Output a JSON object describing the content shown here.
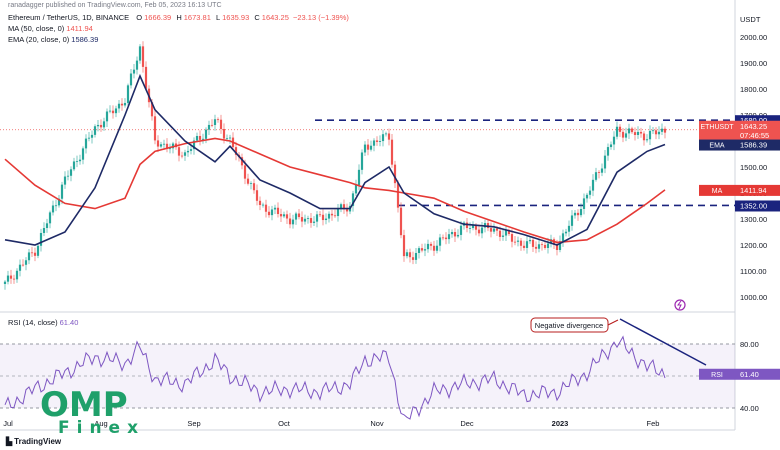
{
  "header": {
    "publisher": "ranadagger published on TradingView.com, Feb 05, 2023 16:13 UTC",
    "symbol_line": "Ethereum / TetherUS, 1D, BINANCE",
    "ohlc": {
      "o": "1666.39",
      "h": "1673.81",
      "l": "1635.93",
      "c": "1643.25",
      "chg": "−23.13 (−1.39%)"
    },
    "ma_label": "MA (50, close, 0)",
    "ma_value": "1411.94",
    "ema_label": "EMA (20, close, 0)",
    "ema_value": "1586.39",
    "rsi_label": "RSI (14, close)",
    "rsi_value": "61.40",
    "currency": "USDT"
  },
  "price_axis": [
    "2000.00",
    "1900.00",
    "1800.00",
    "1700.00",
    "1600.00",
    "1500.00",
    "1400.00",
    "1300.00",
    "1200.00",
    "1100.00",
    "1000.00"
  ],
  "rsi_axis": [
    "80.00",
    "40.00"
  ],
  "time_axis": [
    "Jul",
    "Aug",
    "Sep",
    "Oct",
    "Nov",
    "Dec",
    "2023",
    "Feb"
  ],
  "tags": {
    "ethusdt_name": "ETHUSDT",
    "ethusdt_price": "1643.25",
    "ethusdt_timer": "07:46:55",
    "ema_name": "EMA",
    "ema_price": "1586.39",
    "ma_name": "MA",
    "ma_price": "1411.94",
    "res_level": "1680.00",
    "sup_level": "1352.00",
    "rsi_name": "RSI",
    "rsi_value": "61.40"
  },
  "annotation": "Negative divergence",
  "logo": {
    "text": "OMP",
    "sub": "Finex",
    "tv": "TradingView"
  },
  "colors": {
    "up": "#26a69a",
    "down": "#ef5350",
    "ema": "#1e2a66",
    "ma": "#e53935",
    "rsi": "#7e57c2",
    "level": "#1a237e"
  },
  "chart_data": {
    "type": "candlestick",
    "title": "Ethereum / TetherUS, 1D, BINANCE",
    "ylim": [
      960,
      2080
    ],
    "levels": [
      1680,
      1352
    ],
    "dates": [
      "2022-06-30",
      "2022-07-10",
      "2022-07-20",
      "2022-07-30",
      "2022-08-09",
      "2022-08-14",
      "2022-08-19",
      "2022-08-29",
      "2022-09-08",
      "2022-09-13",
      "2022-09-23",
      "2022-10-03",
      "2022-10-13",
      "2022-10-23",
      "2022-10-28",
      "2022-11-05",
      "2022-11-10",
      "2022-11-20",
      "2022-11-30",
      "2022-12-10",
      "2022-12-20",
      "2022-12-31",
      "2023-01-10",
      "2023-01-20",
      "2023-01-30",
      "2023-02-05"
    ],
    "series": [
      {
        "name": "ETHUSDT",
        "values": [
          1050,
          1180,
          1450,
          1650,
          1760,
          1960,
          1600,
          1550,
          1680,
          1600,
          1350,
          1300,
          1300,
          1350,
          1580,
          1620,
          1150,
          1200,
          1270,
          1260,
          1200,
          1200,
          1390,
          1640,
          1620,
          1643.25
        ]
      },
      {
        "name": "EMA",
        "values": [
          1220,
          1200,
          1250,
          1420,
          1700,
          1850,
          1720,
          1600,
          1520,
          1580,
          1450,
          1400,
          1340,
          1340,
          1440,
          1500,
          1400,
          1320,
          1280,
          1270,
          1240,
          1200,
          1260,
          1480,
          1560,
          1586.39
        ]
      },
      {
        "name": "MA",
        "values": [
          1530,
          1430,
          1360,
          1340,
          1380,
          1510,
          1560,
          1590,
          1610,
          1600,
          1550,
          1500,
          1470,
          1440,
          1420,
          1410,
          1400,
          1380,
          1330,
          1290,
          1250,
          1210,
          1220,
          1280,
          1360,
          1411.94
        ]
      },
      {
        "name": "RSI",
        "values": [
          40,
          52,
          62,
          72,
          68,
          78,
          58,
          55,
          70,
          60,
          50,
          52,
          50,
          55,
          70,
          72,
          31,
          50,
          55,
          58,
          48,
          50,
          62,
          82,
          66,
          61.4
        ]
      }
    ]
  }
}
